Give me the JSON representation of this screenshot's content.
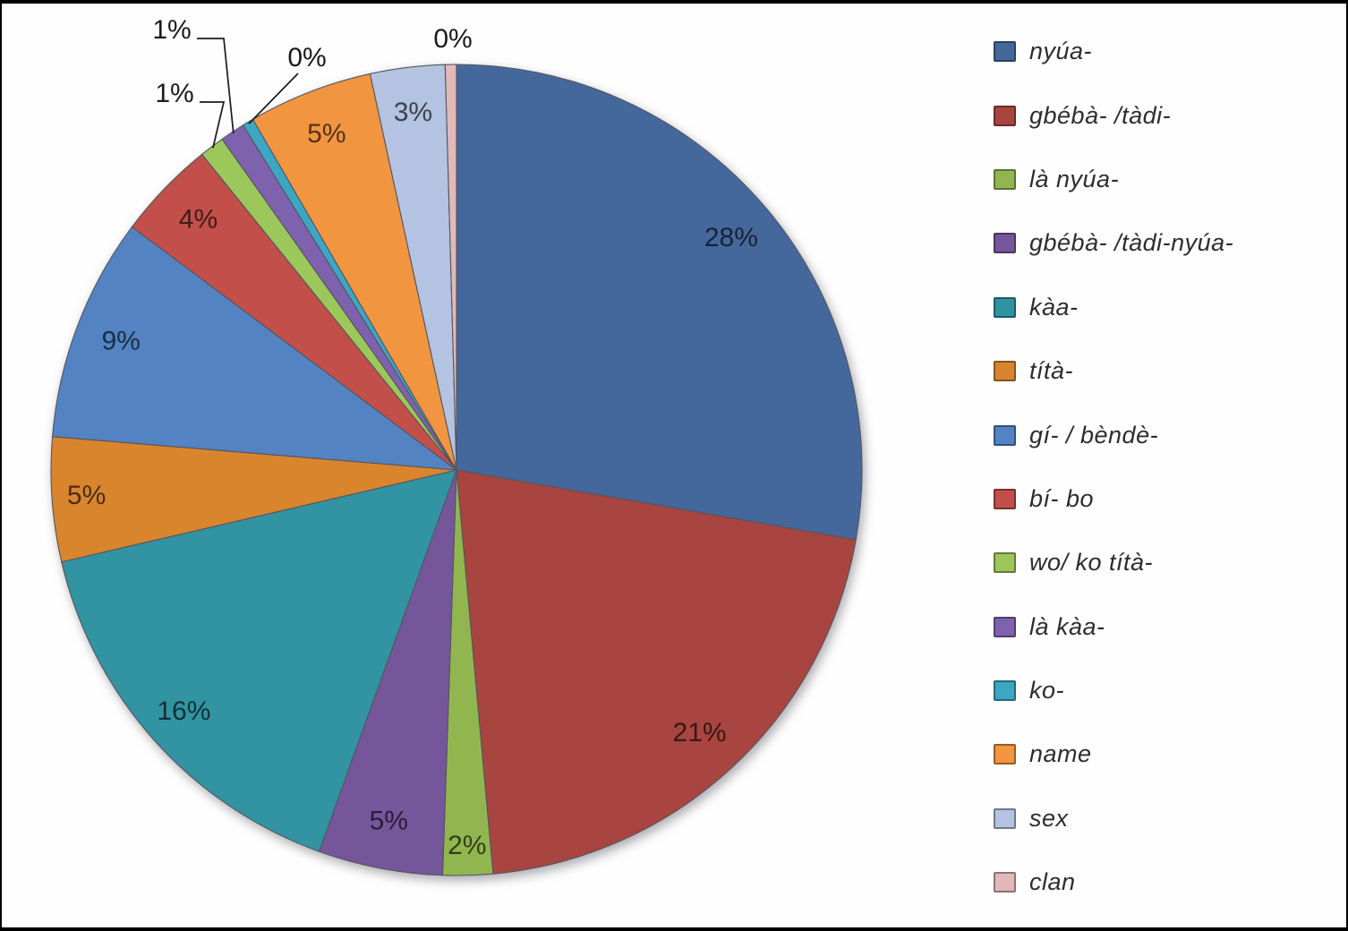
{
  "chart_data": {
    "type": "pie",
    "title": "",
    "legend_position": "right",
    "values_are_percent": true,
    "slices": [
      {
        "label": "nyúa-",
        "pct": 28,
        "color": "#44689C",
        "label_placement": "inside"
      },
      {
        "label": "gbébà- /tàdi-",
        "pct": 21,
        "color": "#A8453F",
        "label_placement": "inside"
      },
      {
        "label": "là nyúa-",
        "pct": 2,
        "color": "#92B64F",
        "label_placement": "inside"
      },
      {
        "label": "gbébà- /tàdi-nyúa-",
        "pct": 5,
        "color": "#75569B",
        "label_placement": "inside"
      },
      {
        "label": "kàa-",
        "pct": 16,
        "color": "#3093A2",
        "label_placement": "inside"
      },
      {
        "label": "títà-",
        "pct": 5,
        "color": "#D9852F",
        "label_placement": "inside"
      },
      {
        "label": "gí- / bèndè-",
        "pct": 9,
        "color": "#5383C2",
        "label_placement": "inside"
      },
      {
        "label": "bí- bo",
        "pct": 4,
        "color": "#C24F4A",
        "label_placement": "inside"
      },
      {
        "label": "wo/ ko títà-",
        "pct": 1,
        "color": "#9CC75A",
        "label_placement": "callout"
      },
      {
        "label": "là kàa-",
        "pct": 1,
        "color": "#7E62AE",
        "label_placement": "callout"
      },
      {
        "label": "ko-",
        "pct": 0,
        "color": "#3BA7C2",
        "label_placement": "callout"
      },
      {
        "label": "name",
        "pct": 5,
        "color": "#F2953F",
        "label_placement": "inside"
      },
      {
        "label": "sex",
        "pct": 3,
        "color": "#B3C3E1",
        "label_placement": "inside"
      },
      {
        "label": "clan",
        "pct": 0,
        "color": "#E0B9B8",
        "label_placement": "outside-top"
      }
    ]
  }
}
